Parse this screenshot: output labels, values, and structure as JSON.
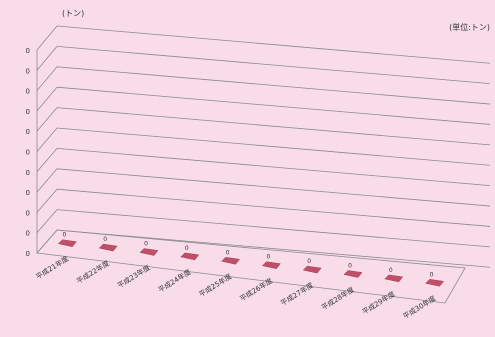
{
  "chart_data": {
    "type": "bar",
    "y_unit_label": "(トン)",
    "unit_note": "(単位:トン)",
    "categories": [
      "平成21年度",
      "平成22年度",
      "平成23年度",
      "平成24年度",
      "平成25年度",
      "平成26年度",
      "平成27年度",
      "平成28年度",
      "平成29年度",
      "平成30年度"
    ],
    "values": [
      0,
      0,
      0,
      0,
      0,
      0,
      0,
      0,
      0,
      0
    ],
    "y_tick_labels": [
      "0",
      "0",
      "0",
      "0",
      "0",
      "0",
      "0",
      "0",
      "0",
      "0",
      "0"
    ],
    "ylim": [
      0,
      1
    ],
    "grid": true,
    "legend": "none",
    "bar_color": "#c0506a"
  }
}
